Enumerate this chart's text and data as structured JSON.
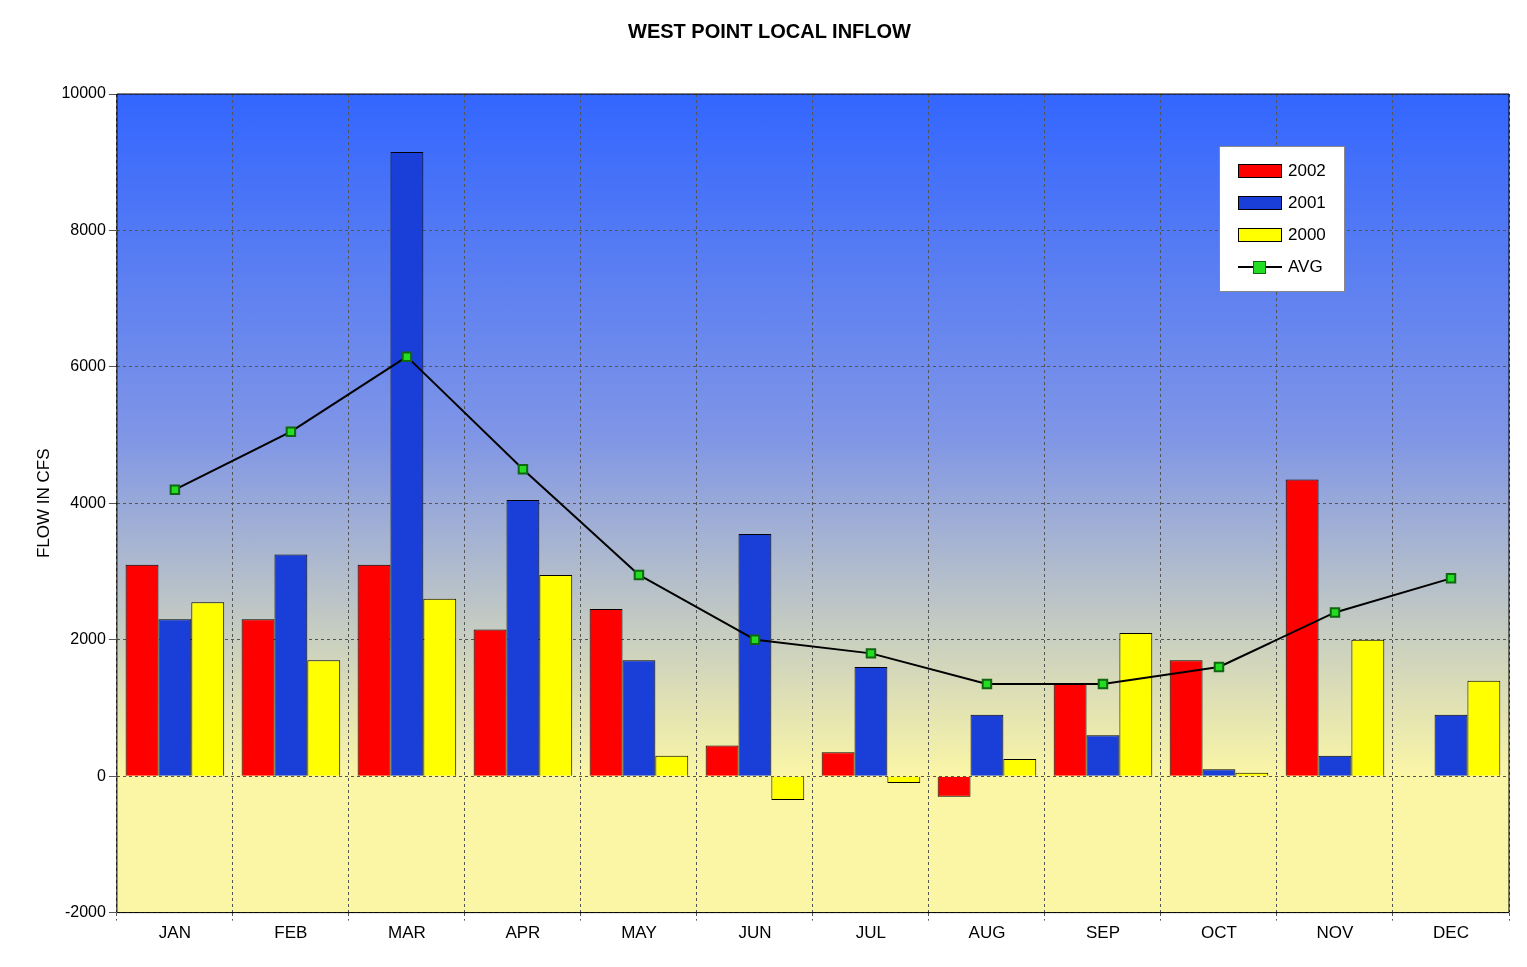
{
  "chart_data": {
    "type": "bar",
    "title": "WEST POINT LOCAL INFLOW",
    "ylabel": "FLOW IN CFS",
    "categories": [
      "JAN",
      "FEB",
      "MAR",
      "APR",
      "MAY",
      "JUN",
      "JUL",
      "AUG",
      "SEP",
      "OCT",
      "NOV",
      "DEC"
    ],
    "series": [
      {
        "name": "2002",
        "color": "#ff0000",
        "values": [
          3100,
          2300,
          3100,
          2150,
          2450,
          450,
          350,
          -300,
          1350,
          1700,
          4350,
          null
        ]
      },
      {
        "name": "2001",
        "color": "#1a3fd9",
        "values": [
          2300,
          3250,
          9150,
          4050,
          1700,
          3550,
          1600,
          900,
          600,
          100,
          300,
          900
        ]
      },
      {
        "name": "2000",
        "color": "#ffff00",
        "values": [
          2550,
          1700,
          2600,
          2950,
          300,
          -350,
          -100,
          250,
          2100,
          50,
          2000,
          1400
        ]
      },
      {
        "name": "AVG",
        "type": "line",
        "color": "#000000",
        "marker": "square",
        "values": [
          4200,
          5050,
          6150,
          4500,
          2950,
          2000,
          1800,
          1350,
          1350,
          1600,
          2400,
          2900
        ]
      }
    ],
    "ylim": [
      -2000,
      10000
    ],
    "yticks": [
      -2000,
      0,
      2000,
      4000,
      6000,
      8000,
      10000
    ],
    "grid": true,
    "legend": "top right"
  }
}
